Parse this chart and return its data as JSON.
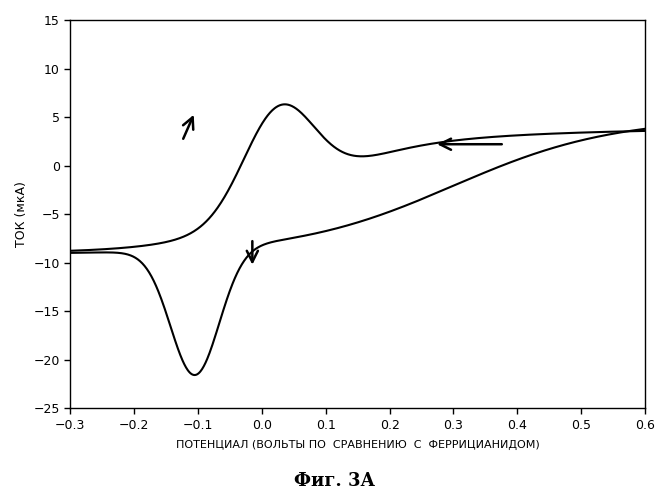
{
  "xlim": [
    -0.3,
    0.6
  ],
  "ylim": [
    -25,
    15
  ],
  "xticks": [
    -0.3,
    -0.2,
    -0.1,
    0.0,
    0.1,
    0.2,
    0.3,
    0.4,
    0.5,
    0.6
  ],
  "yticks": [
    -25,
    -20,
    -15,
    -10,
    -5,
    0,
    5,
    10,
    15
  ],
  "xlabel": "ПОТЕНЦИАЛ (ВОЛЬТЫ ПО  СРАВНЕНИЮ  С  ФЕРРИЦИАНИДОМ)",
  "ylabel": "ТОК (мкА)",
  "title": "Фиг. 3А",
  "background_color": "#ffffff",
  "line_color": "#000000"
}
